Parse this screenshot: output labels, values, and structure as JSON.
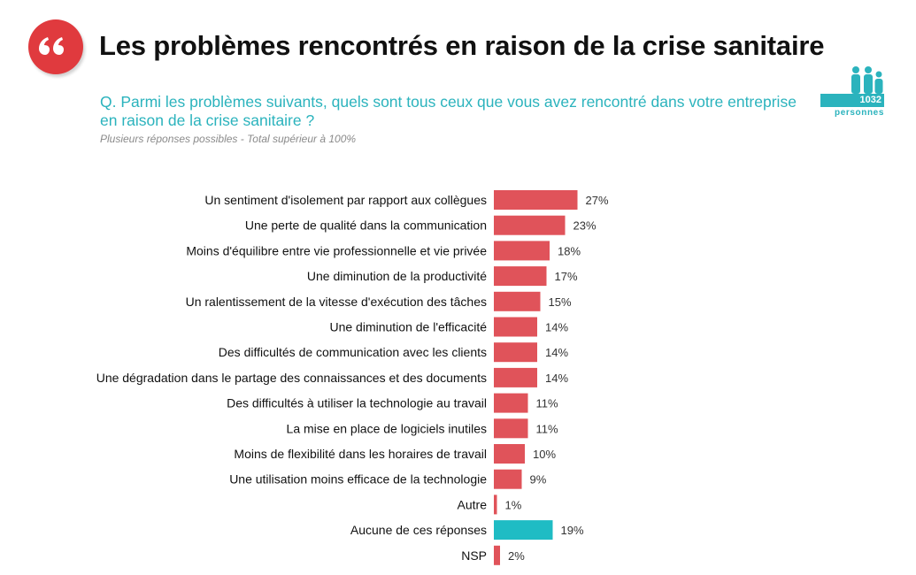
{
  "header": {
    "title": "Les problèmes rencontrés en raison de la crise sanitaire",
    "question": "Q. Parmi les problèmes suivants, quels sont tous ceux que vous avez rencontré dans votre entreprise en raison de la crise sanitaire ?",
    "note": "Plusieurs réponses possibles - Total supérieur à 100%",
    "sample_count": "1032",
    "sample_label": "personnes"
  },
  "colors": {
    "accent_red": "#e0535a",
    "accent_teal": "#1fbcc4",
    "badge_red": "#e03a3e",
    "question_teal": "#2bb3bd"
  },
  "icons": [
    "quote-icon",
    "people-icon"
  ],
  "chart_data": {
    "type": "bar",
    "orientation": "horizontal",
    "categories": [
      "Un sentiment d'isolement par rapport aux collègues",
      "Une perte de qualité dans la communication",
      "Moins d'équilibre entre vie professionnelle et vie privée",
      "Une diminution de la productivité",
      "Un ralentissement de la vitesse d'exécution des tâches",
      "Une diminution de l'efficacité",
      "Des difficultés de communication avec les clients",
      "Une dégradation dans le partage des connaissances et des documents",
      "Des difficultés à utiliser la technologie au travail",
      "La mise en place de logiciels inutiles",
      "Moins de flexibilité dans les horaires de travail",
      "Une utilisation moins efficace de la technologie",
      "Autre",
      "Aucune de ces réponses",
      "NSP"
    ],
    "values": [
      27,
      23,
      18,
      17,
      15,
      14,
      14,
      14,
      11,
      11,
      10,
      9,
      1,
      19,
      2
    ],
    "value_labels": [
      "27%",
      "23%",
      "18%",
      "17%",
      "15%",
      "14%",
      "14%",
      "14%",
      "11%",
      "11%",
      "10%",
      "9%",
      "1%",
      "19%",
      "2%"
    ],
    "highlight_index": 13,
    "unit": "%",
    "grid": false,
    "legend": "none"
  }
}
